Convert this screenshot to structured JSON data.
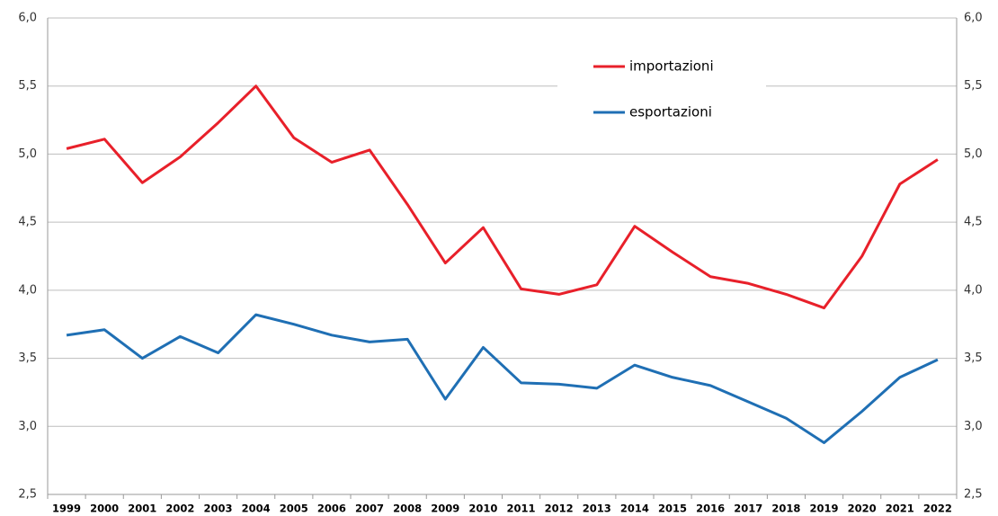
{
  "chart_data": {
    "type": "line",
    "categories": [
      "1999",
      "2000",
      "2001",
      "2002",
      "2003",
      "2004",
      "2005",
      "2006",
      "2007",
      "2008",
      "2009",
      "2010",
      "2011",
      "2012",
      "2013",
      "2014",
      "2015",
      "2016",
      "2017",
      "2018",
      "2019",
      "2020",
      "2021",
      "2022"
    ],
    "series": [
      {
        "name": "importazioni",
        "color": "#e8202a",
        "values": [
          5.04,
          5.11,
          4.79,
          4.98,
          5.23,
          5.5,
          5.12,
          4.94,
          5.03,
          4.63,
          4.2,
          4.46,
          4.01,
          3.97,
          4.04,
          4.47,
          4.28,
          4.1,
          4.05,
          3.97,
          3.87,
          4.25,
          4.78,
          4.96
        ]
      },
      {
        "name": "esportazioni",
        "color": "#1f6fb4",
        "values": [
          3.67,
          3.71,
          3.5,
          3.66,
          3.54,
          3.82,
          3.75,
          3.67,
          3.62,
          3.64,
          3.2,
          3.58,
          3.32,
          3.31,
          3.28,
          3.45,
          3.36,
          3.3,
          3.18,
          3.06,
          2.88,
          3.11,
          3.36,
          3.49
        ]
      }
    ],
    "ylim": [
      2.5,
      6.0
    ],
    "yticks": [
      {
        "value": 2.5,
        "label": "2,5"
      },
      {
        "value": 3.0,
        "label": "3,0"
      },
      {
        "value": 3.5,
        "label": "3,5"
      },
      {
        "value": 4.0,
        "label": "4,0"
      },
      {
        "value": 4.5,
        "label": "4,5"
      },
      {
        "value": 5.0,
        "label": "5,0"
      },
      {
        "value": 5.5,
        "label": "5,5"
      },
      {
        "value": 6.0,
        "label": "6,0"
      }
    ],
    "y2lim": [
      2.5,
      6.0
    ],
    "y2ticks": [
      {
        "value": 2.5,
        "label": "2,5"
      },
      {
        "value": 3.0,
        "label": "3,0"
      },
      {
        "value": 3.5,
        "label": "3,5"
      },
      {
        "value": 4.0,
        "label": "4,0"
      },
      {
        "value": 4.5,
        "label": "4,5"
      },
      {
        "value": 5.0,
        "label": "5,0"
      },
      {
        "value": 5.5,
        "label": "5,5"
      },
      {
        "value": 6.0,
        "label": "6,0"
      }
    ],
    "grid": true,
    "legend": "upper center"
  }
}
